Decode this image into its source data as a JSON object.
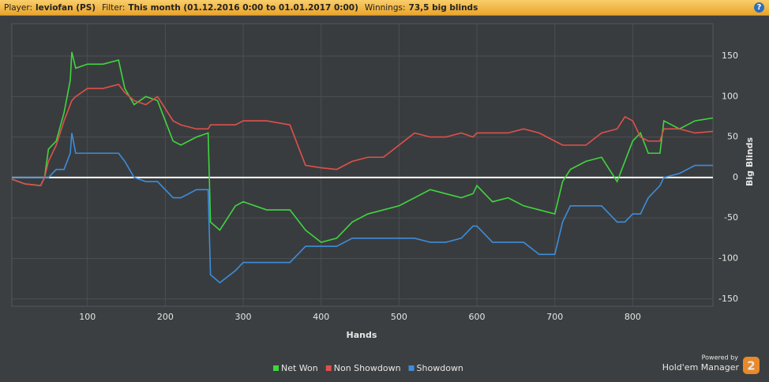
{
  "header": {
    "player_label": "Player:",
    "player": "leviofan (PS)",
    "filter_label": "Filter:",
    "filter": "This month (01.12.2016 0:00 to 01.01.2017 0:00)",
    "winnings_label": "Winnings:",
    "winnings": "73,5 big blinds",
    "help": "?"
  },
  "branding": {
    "powered_by": "Powered by",
    "product": "Hold'em Manager",
    "version": "2"
  },
  "chart_data": {
    "type": "line",
    "x_label": "Hands",
    "y_label": "Big Blinds",
    "x": [
      3,
      20,
      40,
      45,
      50,
      60,
      70,
      78,
      80,
      85,
      100,
      120,
      140,
      148,
      160,
      175,
      190,
      200,
      210,
      220,
      240,
      255,
      258,
      270,
      290,
      300,
      330,
      360,
      380,
      400,
      420,
      440,
      460,
      480,
      500,
      520,
      540,
      560,
      580,
      595,
      600,
      620,
      640,
      660,
      680,
      700,
      710,
      720,
      740,
      760,
      780,
      790,
      800,
      810,
      820,
      835,
      840,
      860,
      880,
      903
    ],
    "series": [
      {
        "name": "Net Won",
        "color": "#3fd63f",
        "values": [
          -2,
          -8,
          -10,
          0,
          35,
          45,
          80,
          120,
          155,
          135,
          140,
          140,
          145,
          110,
          90,
          100,
          95,
          70,
          45,
          40,
          50,
          55,
          -55,
          -65,
          -35,
          -30,
          -40,
          -40,
          -65,
          -80,
          -75,
          -55,
          -45,
          -40,
          -35,
          -25,
          -15,
          -20,
          -25,
          -20,
          -10,
          -30,
          -25,
          -35,
          -40,
          -45,
          -5,
          10,
          20,
          25,
          -5,
          20,
          45,
          55,
          30,
          30,
          70,
          60,
          70,
          73.5
        ]
      },
      {
        "name": "Non Showdown",
        "color": "#e0504c",
        "values": [
          -2,
          -8,
          -10,
          0,
          20,
          40,
          70,
          90,
          95,
          100,
          110,
          110,
          115,
          105,
          95,
          90,
          100,
          85,
          70,
          65,
          60,
          60,
          65,
          65,
          65,
          70,
          70,
          65,
          15,
          12,
          10,
          20,
          25,
          25,
          40,
          55,
          50,
          50,
          55,
          50,
          55,
          55,
          55,
          60,
          55,
          45,
          40,
          40,
          40,
          55,
          60,
          75,
          70,
          50,
          45,
          45,
          60,
          60,
          55,
          57
        ]
      },
      {
        "name": "Showdown",
        "color": "#3d8ddb",
        "values": [
          0,
          0,
          0,
          0,
          0,
          10,
          10,
          30,
          55,
          30,
          30,
          30,
          30,
          20,
          0,
          -5,
          -5,
          -15,
          -25,
          -25,
          -15,
          -15,
          -120,
          -130,
          -115,
          -105,
          -105,
          -105,
          -85,
          -85,
          -85,
          -75,
          -75,
          -75,
          -75,
          -75,
          -80,
          -80,
          -75,
          -60,
          -60,
          -80,
          -80,
          -80,
          -95,
          -95,
          -55,
          -35,
          -35,
          -35,
          -55,
          -55,
          -45,
          -45,
          -25,
          -10,
          0,
          5,
          15,
          15
        ]
      }
    ],
    "xlim": [
      3,
      903
    ],
    "ylim": [
      -159,
      190
    ],
    "xticks": [
      100,
      200,
      300,
      400,
      500,
      600,
      700,
      800
    ],
    "yticks": [
      -150,
      -100,
      -50,
      0,
      50,
      100,
      150
    ],
    "grid": true
  }
}
